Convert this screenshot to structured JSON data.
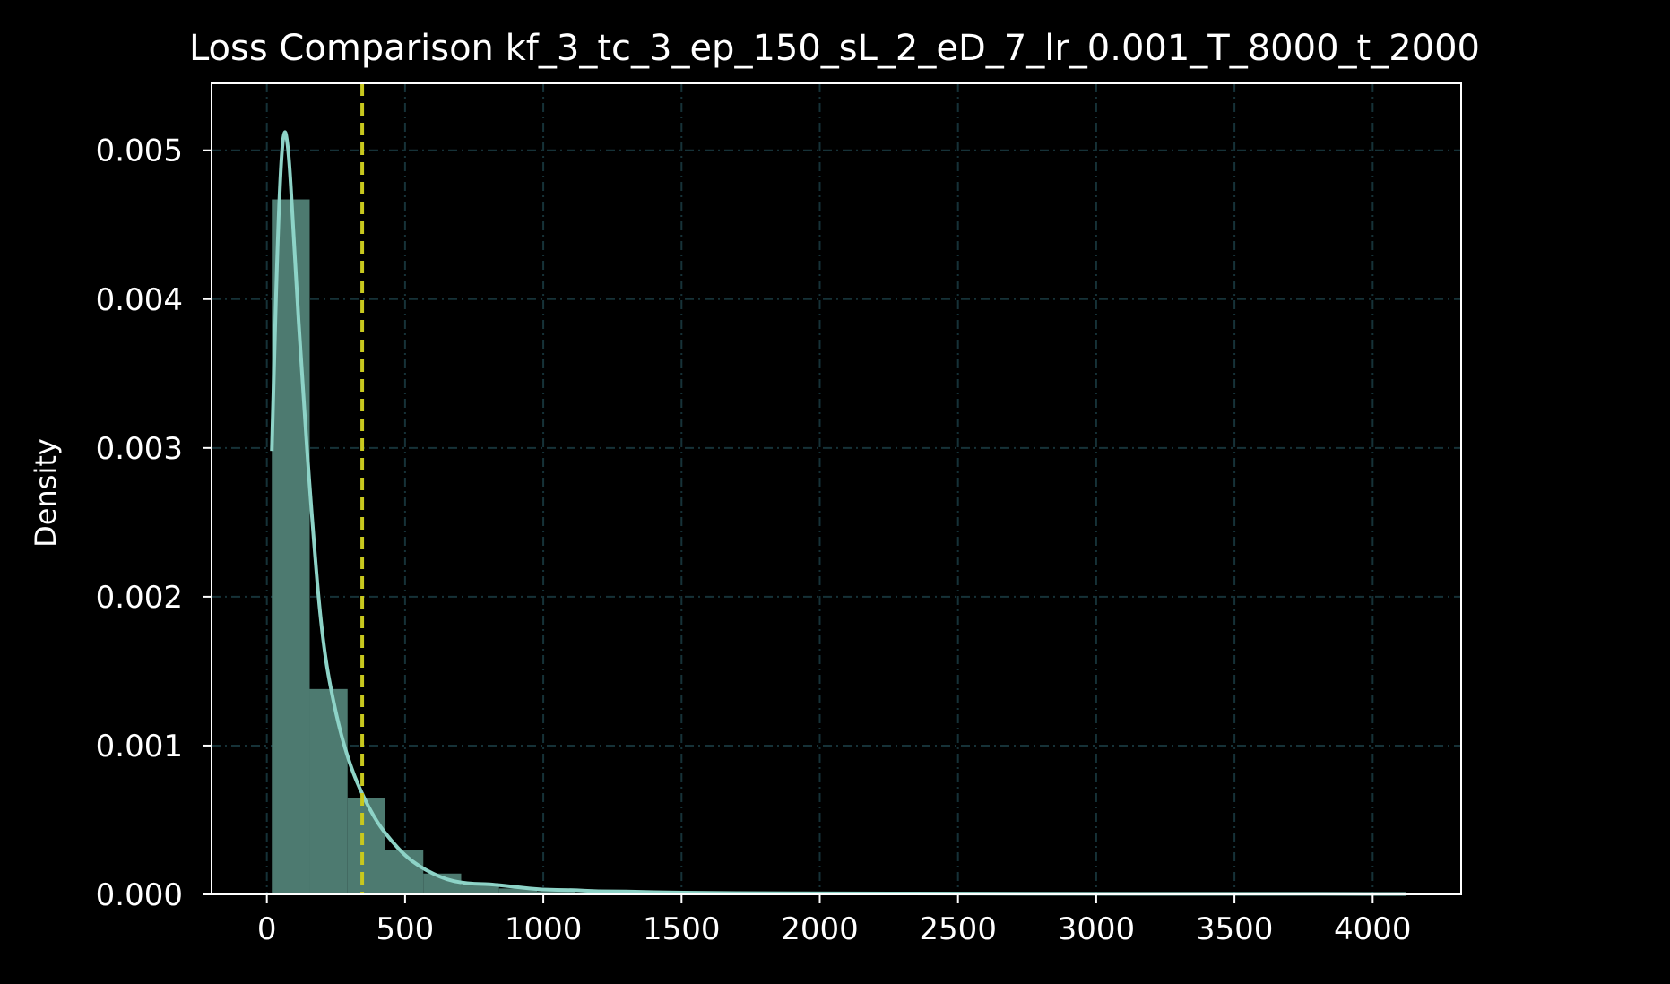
{
  "chart_data": {
    "type": "histogram",
    "title": "Loss Comparison kf_3_tc_3_ep_150_sL_2_eD_7_lr_0.001_T_8000_t_2000",
    "xlabel": "",
    "ylabel": "Density",
    "xlim": [
      -200,
      4320
    ],
    "ylim": [
      0,
      0.00545
    ],
    "xticks": [
      0,
      500,
      1000,
      1500,
      2000,
      2500,
      3000,
      3500,
      4000
    ],
    "xtick_labels": [
      "0",
      "500",
      "1000",
      "1500",
      "2000",
      "2500",
      "3000",
      "3500",
      "4000"
    ],
    "yticks": [
      0,
      0.001,
      0.002,
      0.003,
      0.004,
      0.005
    ],
    "ytick_labels": [
      "0.000",
      "0.001",
      "0.002",
      "0.003",
      "0.004",
      "0.005"
    ],
    "grid": true,
    "bins": [
      {
        "x0": 18,
        "x1": 155,
        "density": 0.00467
      },
      {
        "x0": 155,
        "x1": 292,
        "density": 0.00138
      },
      {
        "x0": 292,
        "x1": 429,
        "density": 0.00065
      },
      {
        "x0": 429,
        "x1": 566,
        "density": 0.0003
      },
      {
        "x0": 566,
        "x1": 703,
        "density": 0.00014
      },
      {
        "x0": 703,
        "x1": 840,
        "density": 6e-05
      },
      {
        "x0": 840,
        "x1": 977,
        "density": 4e-05
      },
      {
        "x0": 977,
        "x1": 1114,
        "density": 2e-05
      },
      {
        "x0": 1114,
        "x1": 1251,
        "density": 1e-05
      },
      {
        "x0": 1251,
        "x1": 1388,
        "density": 1e-05
      }
    ],
    "kde": {
      "x": [
        18,
        40,
        60,
        80,
        100,
        130,
        160,
        200,
        250,
        300,
        350,
        400,
        450,
        500,
        550,
        600,
        650,
        700,
        750,
        800,
        900,
        1000,
        1100,
        1200,
        1300,
        1400,
        1500,
        1600,
        1800,
        2000,
        2500,
        3000,
        3500,
        4120
      ],
      "y": [
        0.00298,
        0.0045,
        0.0052,
        0.005,
        0.0043,
        0.0034,
        0.0026,
        0.0017,
        0.0012,
        0.00087,
        0.00065,
        0.00048,
        0.00036,
        0.00026,
        0.00019,
        0.00014,
        0.0001,
        8e-05,
        7e-05,
        7e-05,
        5e-05,
        3e-05,
        3e-05,
        2e-05,
        2e-05,
        1.5e-05,
        1.2e-05,
        1e-05,
        8e-06,
        7e-06,
        5e-06,
        4e-06,
        4e-06,
        3e-06
      ]
    },
    "vline": {
      "x": 345,
      "style": "dashed"
    },
    "colors": {
      "background": "#000000",
      "bars": "#4d7a70",
      "kde": "#8dd3c7",
      "vline": "#c8c81e",
      "grid": "#163238",
      "axis": "#ffffff",
      "text": "#ffffff"
    }
  }
}
